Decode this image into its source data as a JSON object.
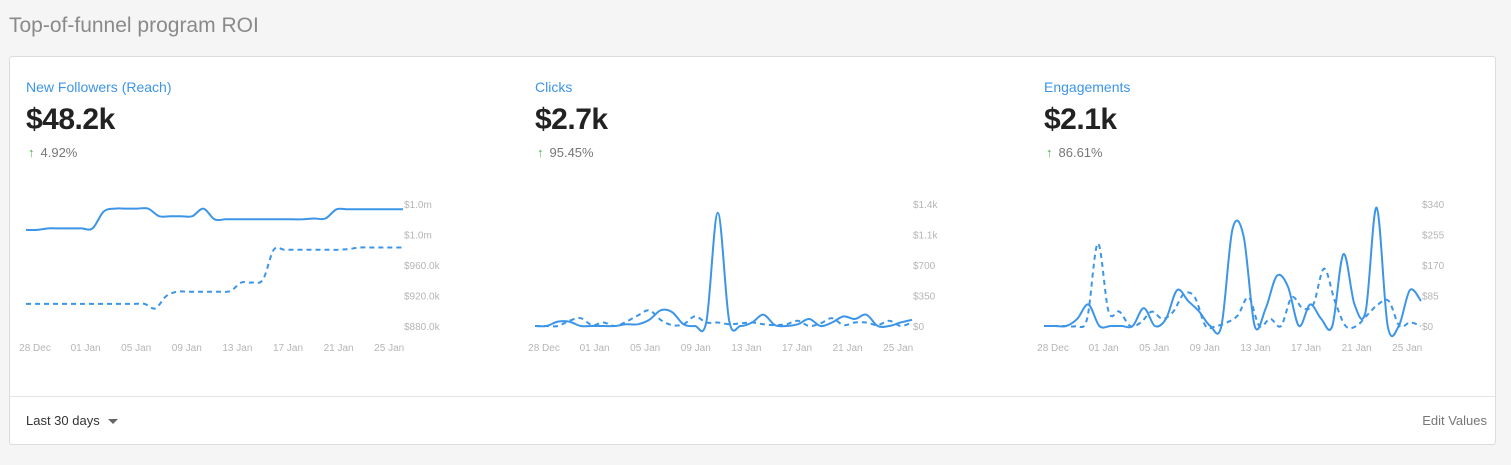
{
  "page": {
    "title": "Top-of-funnel program ROI"
  },
  "metrics": [
    {
      "title": "New Followers (Reach)",
      "value": "$48.2k",
      "change": "4.92%",
      "change_direction": "up"
    },
    {
      "title": "Clicks",
      "value": "$2.7k",
      "change": "95.45%",
      "change_direction": "up"
    },
    {
      "title": "Engagements",
      "value": "$2.1k",
      "change": "86.61%",
      "change_direction": "up"
    }
  ],
  "footer": {
    "range_label": "Last 30 days",
    "edit_label": "Edit Values"
  },
  "colors": {
    "accent": "#3d95e8",
    "positive": "#4caf50"
  },
  "icons": {
    "range_caret": "chevron-down-icon",
    "change_arrow": "arrow-up-icon"
  },
  "chart_data": [
    {
      "type": "line",
      "x_labels": [
        "28 Dec",
        "01 Jan",
        "05 Jan",
        "09 Jan",
        "13 Jan",
        "17 Jan",
        "21 Jan",
        "25 Jan"
      ],
      "y_ticks": [
        "$1.0m",
        "$1.0m",
        "$960.0k",
        "$920.0k",
        "$880.0k"
      ],
      "ylim": [
        880000,
        1040000
      ],
      "series": [
        {
          "style": "solid",
          "values": [
            1006000,
            1006000,
            1008000,
            1008000,
            1008000,
            1008000,
            1008000,
            1030000,
            1034000,
            1034000,
            1034000,
            1034000,
            1024000,
            1024000,
            1024000,
            1024000,
            1034000,
            1020000,
            1020000,
            1020000,
            1020000,
            1020000,
            1020000,
            1020000,
            1020000,
            1020000,
            1021000,
            1021000,
            1033000,
            1033000,
            1033000,
            1033000,
            1033000,
            1033000,
            1033000
          ]
        },
        {
          "style": "dashed",
          "values": [
            909000,
            909000,
            909000,
            909000,
            909000,
            909000,
            909000,
            909000,
            909000,
            909000,
            909000,
            909000,
            903000,
            919000,
            925000,
            925000,
            925000,
            925000,
            925000,
            926000,
            937000,
            937000,
            941000,
            980000,
            980000,
            980000,
            980000,
            980000,
            980000,
            980000,
            981000,
            983000,
            983000,
            983000,
            983000,
            983000
          ]
        }
      ]
    },
    {
      "type": "line",
      "x_labels": [
        "28 Dec",
        "01 Jan",
        "05 Jan",
        "09 Jan",
        "13 Jan",
        "17 Jan",
        "21 Jan",
        "25 Jan"
      ],
      "y_ticks": [
        "$1.4k",
        "$1.1k",
        "$700",
        "$350",
        "$0"
      ],
      "ylim": [
        0,
        1400
      ],
      "series": [
        {
          "style": "solid",
          "values": [
            0,
            0,
            50,
            50,
            0,
            0,
            0,
            0,
            20,
            20,
            70,
            180,
            160,
            20,
            0,
            50,
            1300,
            60,
            0,
            40,
            130,
            10,
            0,
            20,
            80,
            0,
            40,
            110,
            80,
            130,
            0,
            0,
            40,
            70
          ]
        },
        {
          "style": "dashed",
          "values": [
            0,
            0,
            0,
            60,
            90,
            10,
            40,
            0,
            50,
            120,
            180,
            70,
            10,
            20,
            110,
            40,
            40,
            20,
            30,
            40,
            20,
            10,
            20,
            60,
            0,
            30,
            90,
            10,
            40,
            40,
            10,
            60,
            0,
            40
          ]
        }
      ]
    },
    {
      "type": "line",
      "x_labels": [
        "28 Dec",
        "01 Jan",
        "05 Jan",
        "09 Jan",
        "13 Jan",
        "17 Jan",
        "21 Jan",
        "25 Jan"
      ],
      "y_ticks": [
        "$340",
        "$255",
        "$170",
        "$85",
        "$0"
      ],
      "ylim": [
        0,
        340
      ],
      "series": [
        {
          "style": "solid",
          "values": [
            0,
            0,
            0,
            20,
            60,
            0,
            0,
            0,
            0,
            50,
            0,
            20,
            100,
            70,
            40,
            0,
            0,
            270,
            250,
            0,
            50,
            140,
            110,
            0,
            60,
            20,
            0,
            200,
            60,
            40,
            330,
            0,
            0,
            100,
            70
          ]
        },
        {
          "style": "dashed",
          "values": [
            0,
            0,
            0,
            0,
            20,
            230,
            40,
            40,
            0,
            10,
            40,
            20,
            40,
            90,
            80,
            0,
            0,
            10,
            30,
            80,
            0,
            20,
            0,
            80,
            50,
            60,
            160,
            70,
            0,
            0,
            30,
            60,
            70,
            0,
            10,
            0
          ]
        }
      ]
    }
  ]
}
